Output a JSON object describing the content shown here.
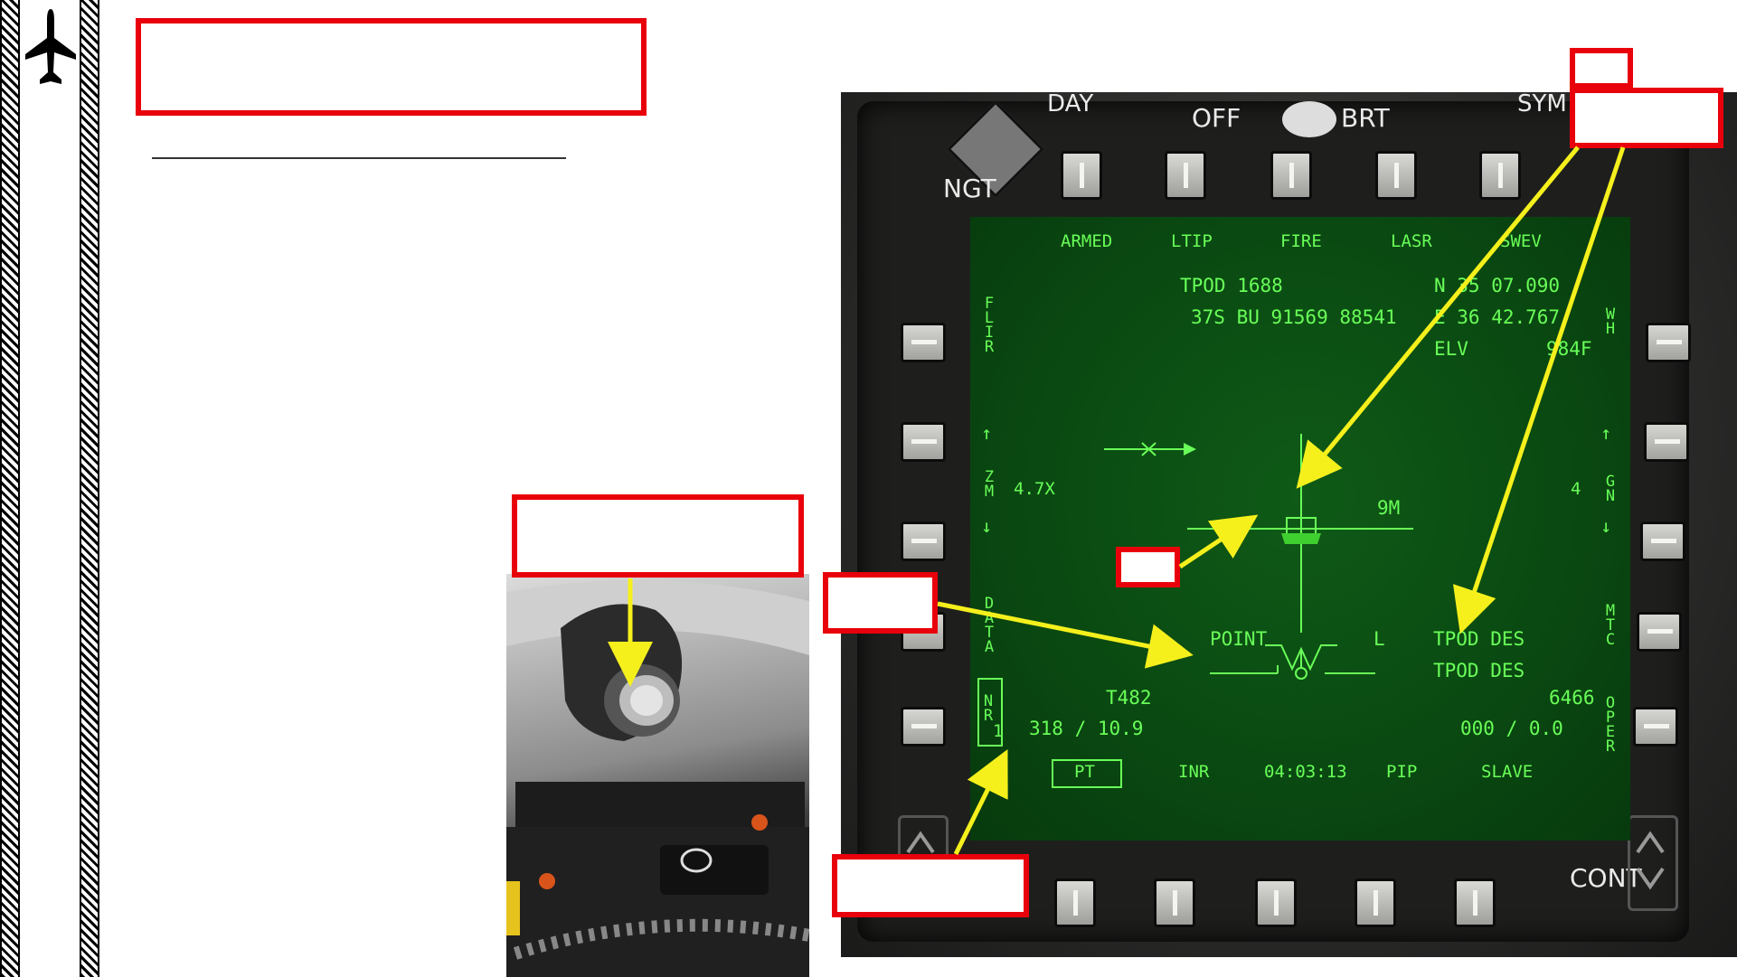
{
  "mfd": {
    "bezel": {
      "day": "DAY",
      "off": "OFF",
      "brt": "BRT",
      "sym": "SYM",
      "ngt": "NGT",
      "cont": "CONT"
    },
    "top_labels": [
      "ARMED",
      "LTIP",
      "FIRE",
      "LASR",
      "SWEV"
    ],
    "bottom_labels": [
      "PT",
      "INR",
      "04:03:13",
      "PIP",
      "SLAVE"
    ],
    "left_labels": [
      "FLIR",
      "ZM",
      "DATA",
      "NR"
    ],
    "right_labels": [
      "WH",
      "GN",
      "MTC",
      "OPER"
    ],
    "info": {
      "tpod": "TPOD 1688",
      "mgrs": "37S BU 91569 88541",
      "lat": "N 35 07.090",
      "lon": "E 36 42.767",
      "elv_label": "ELV",
      "elv_value": "984F",
      "zoom": "4.7X",
      "gain": "4",
      "range": "9M",
      "mode": "POINT",
      "l_marker": "L",
      "des1": "TPOD DES",
      "des2": "TPOD DES",
      "track": "T482",
      "bearing_range": "318 / 10.9",
      "index": "1",
      "alt_value": "6466",
      "heading_speed": "000 / 0.0"
    }
  },
  "colors": {
    "callout_red": "#e8000b",
    "arrow_yellow": "#f5f01c",
    "symbology_green": "#69ff58",
    "screen_green": "#0a4a12"
  }
}
